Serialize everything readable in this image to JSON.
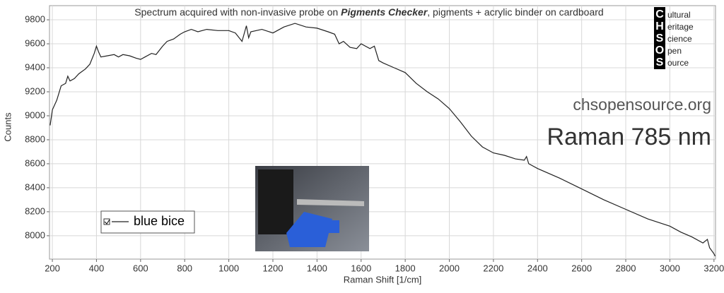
{
  "chart_data": {
    "type": "line",
    "title": [
      "Spectrum acquired with non-invasive probe on ",
      "Pigments Checker",
      ", pigments + acrylic binder on cardboard"
    ],
    "x_label": "Raman Shift [1/cm]",
    "y_label": "Counts",
    "annotations": [
      "chsopensource.org",
      "Raman 785 nm"
    ],
    "logo": {
      "letters": [
        "C",
        "H",
        "S",
        "O",
        "S"
      ],
      "words": [
        "ultural",
        "eritage",
        "cience",
        "pen",
        "ource"
      ]
    },
    "x": [
      190,
      200,
      220,
      240,
      260,
      270,
      280,
      300,
      320,
      350,
      370,
      390,
      400,
      410,
      420,
      450,
      480,
      500,
      520,
      550,
      580,
      600,
      620,
      650,
      670,
      700,
      720,
      750,
      780,
      800,
      830,
      860,
      900,
      950,
      1000,
      1030,
      1060,
      1080,
      1090,
      1100,
      1150,
      1200,
      1250,
      1300,
      1350,
      1400,
      1450,
      1480,
      1500,
      1520,
      1550,
      1580,
      1600,
      1640,
      1660,
      1680,
      1700,
      1750,
      1800,
      1850,
      1900,
      1950,
      2000,
      2050,
      2100,
      2150,
      2200,
      2250,
      2300,
      2340,
      2350,
      2360,
      2400,
      2500,
      2600,
      2700,
      2800,
      2900,
      3000,
      3050,
      3100,
      3150,
      3170,
      3180,
      3200,
      3205
    ],
    "series": [
      {
        "name": "blue bice",
        "color": "#222222",
        "values": [
          8920,
          9050,
          9130,
          9250,
          9270,
          9330,
          9290,
          9310,
          9350,
          9390,
          9430,
          9520,
          9580,
          9530,
          9490,
          9500,
          9510,
          9490,
          9510,
          9500,
          9480,
          9470,
          9490,
          9520,
          9510,
          9580,
          9620,
          9640,
          9680,
          9700,
          9720,
          9700,
          9720,
          9710,
          9710,
          9690,
          9620,
          9750,
          9650,
          9700,
          9720,
          9690,
          9740,
          9770,
          9740,
          9730,
          9700,
          9680,
          9600,
          9620,
          9570,
          9560,
          9600,
          9560,
          9580,
          9460,
          9440,
          9400,
          9360,
          9270,
          9200,
          9140,
          9060,
          8950,
          8830,
          8740,
          8690,
          8670,
          8640,
          8630,
          8660,
          8600,
          8560,
          8480,
          8390,
          8300,
          8220,
          8140,
          8080,
          8030,
          7990,
          7940,
          7970,
          7900,
          7850,
          7830
        ]
      }
    ],
    "xlim": [
      187,
      3207
    ],
    "ylim": [
      7805,
      9918
    ],
    "xticks": [
      200,
      400,
      600,
      800,
      1000,
      1200,
      1400,
      1600,
      1800,
      2000,
      2200,
      2400,
      2600,
      2800,
      3000,
      3200
    ],
    "yticks": [
      8000,
      8200,
      8400,
      8600,
      8800,
      9000,
      9200,
      9400,
      9600,
      9800
    ],
    "grid": true
  }
}
